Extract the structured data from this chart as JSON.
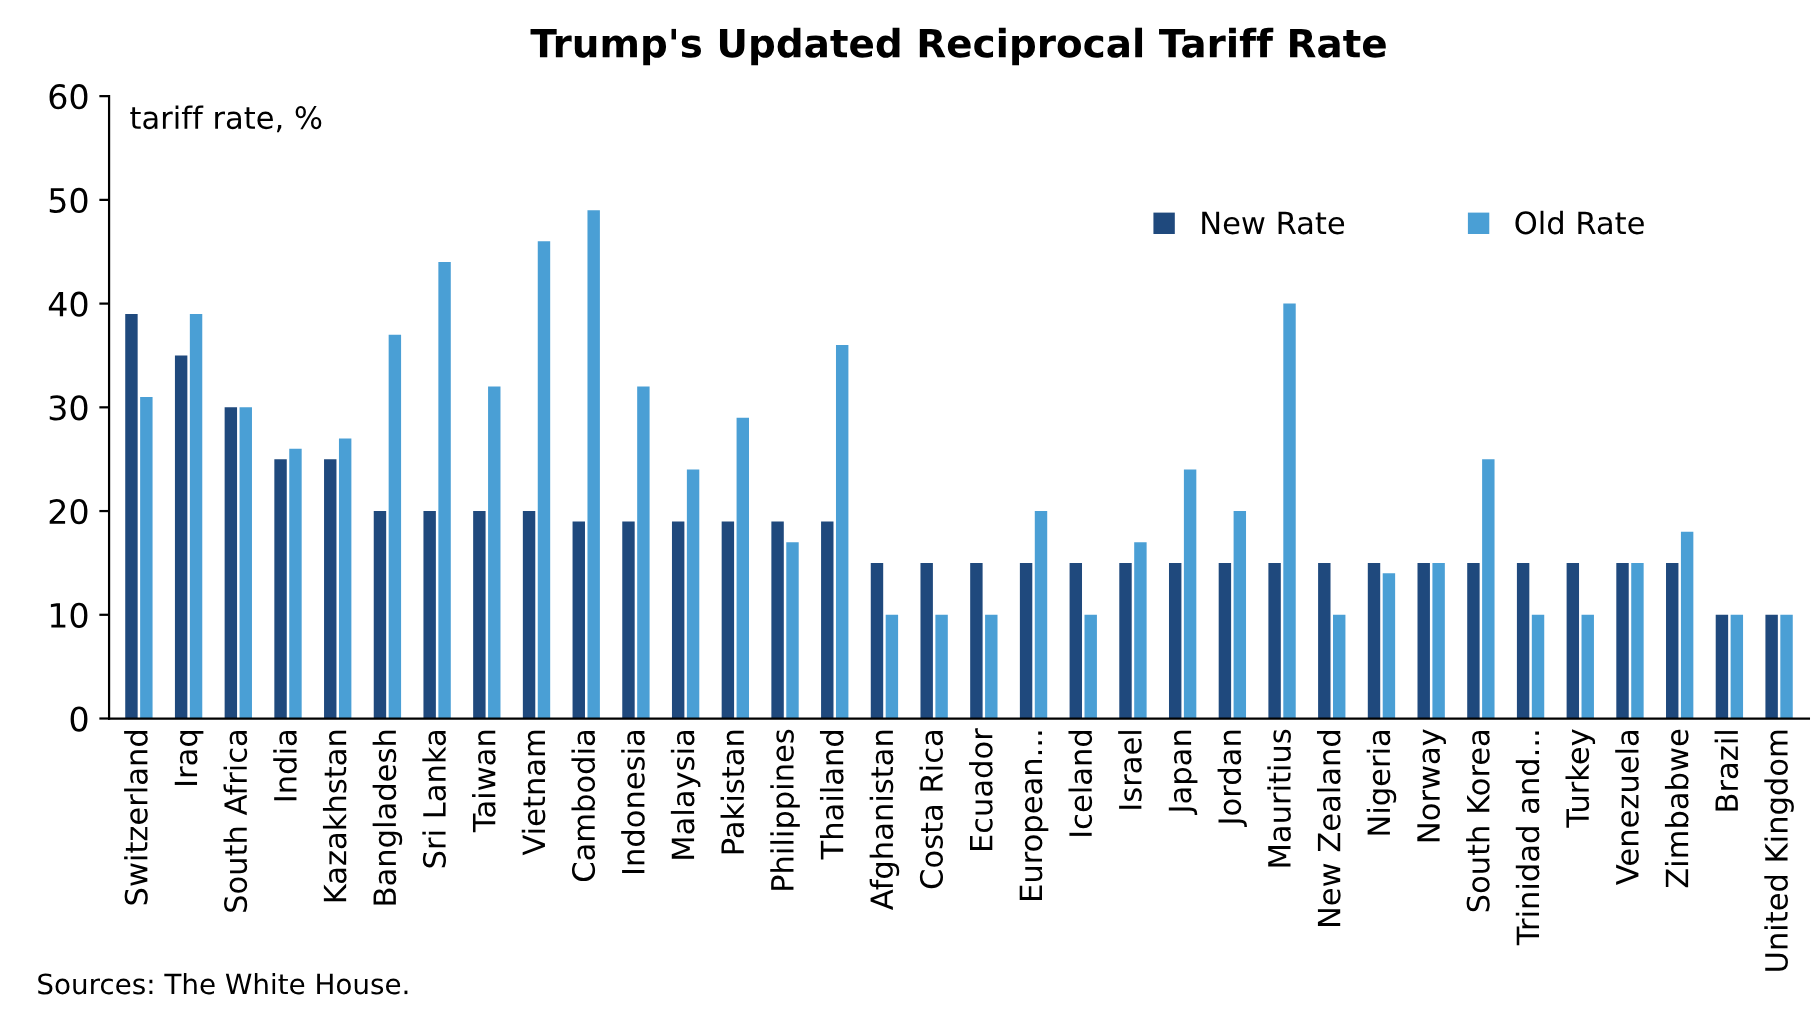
{
  "chart_data": {
    "type": "bar",
    "title": "Trump's Updated Reciprocal Tariff Rate",
    "ylabel": "tariff rate, %",
    "categories": [
      "Switzerland",
      "Iraq",
      "South Africa",
      "India",
      "Kazakhstan",
      "Bangladesh",
      "Sri Lanka",
      "Taiwan",
      "Vietnam",
      "Cambodia",
      "Indonesia",
      "Malaysia",
      "Pakistan",
      "Philippines",
      "Thailand",
      "Afghanistan",
      "Costa Rica",
      "Ecuador",
      "European...",
      "Iceland",
      "Israel",
      "Japan",
      "Jordan",
      "Mauritius",
      "New Zealand",
      "Nigeria",
      "Norway",
      "South Korea",
      "Trinidad and...",
      "Turkey",
      "Venezuela",
      "Zimbabwe",
      "Brazil",
      "United Kingdom"
    ],
    "series": [
      {
        "name": "New Rate",
        "color": "#1f497d",
        "values": [
          39,
          35,
          30,
          25,
          25,
          20,
          20,
          20,
          20,
          19,
          19,
          19,
          19,
          19,
          19,
          15,
          15,
          15,
          15,
          15,
          15,
          15,
          15,
          15,
          15,
          15,
          15,
          15,
          15,
          15,
          15,
          15,
          10,
          10
        ]
      },
      {
        "name": "Old Rate",
        "color": "#4a9fd5",
        "values": [
          31,
          39,
          30,
          26,
          27,
          37,
          44,
          32,
          46,
          49,
          32,
          24,
          29,
          17,
          36,
          10,
          10,
          10,
          20,
          10,
          17,
          24,
          20,
          40,
          10,
          14,
          15,
          25,
          10,
          10,
          15,
          18,
          10,
          10
        ]
      }
    ],
    "ylim": [
      0,
      60
    ],
    "yticks": [
      0,
      10,
      20,
      30,
      40,
      50,
      60
    ],
    "grid": false,
    "legend": "top right",
    "annotations": [
      "Sources: The White House."
    ]
  }
}
